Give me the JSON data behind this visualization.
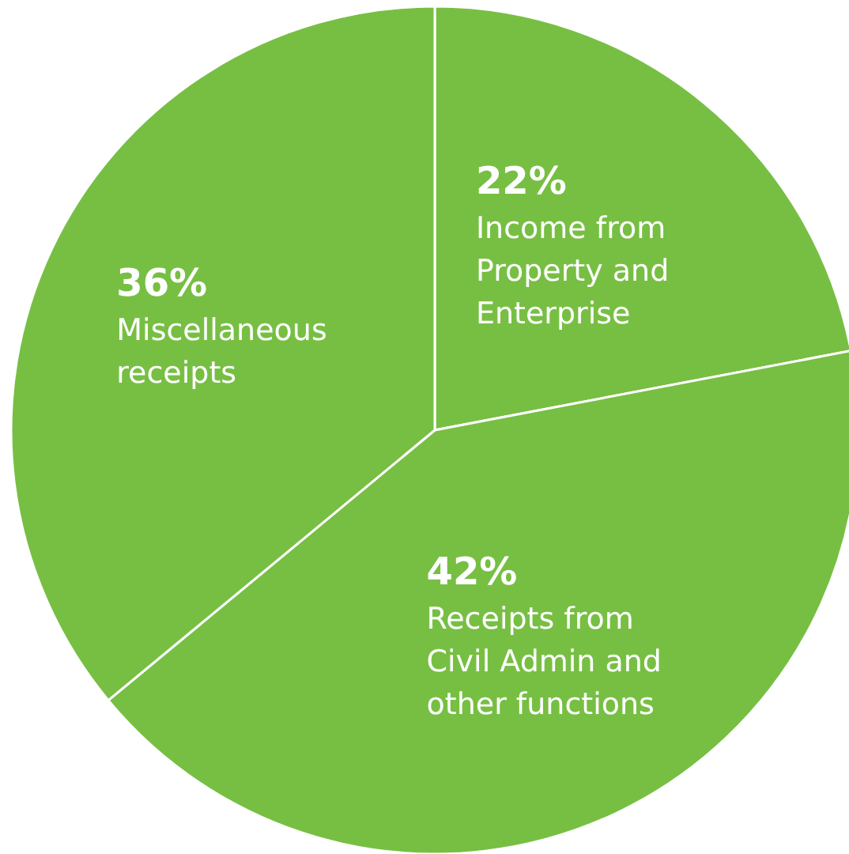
{
  "chart_data": {
    "type": "pie",
    "categories": [
      "Income from Property and Enterprise",
      "Receipts from Civil Admin and other functions",
      "Miscellaneous receipts"
    ],
    "values": [
      22,
      42,
      36
    ],
    "colors": [
      "#77bf43",
      "#77bf43",
      "#77bf43"
    ],
    "value_labels": [
      "22%",
      "42%",
      "36%"
    ]
  }
}
